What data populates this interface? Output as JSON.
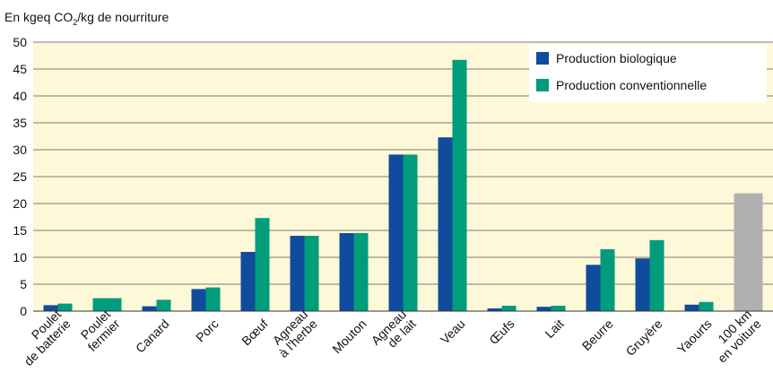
{
  "chart_data": {
    "type": "bar",
    "axis_label": [
      "En kgeq CO",
      "2",
      "/kg de nourriture"
    ],
    "categories": [
      [
        "Poulet",
        "de batterie"
      ],
      [
        "Poulet",
        "fermier"
      ],
      [
        "Canard"
      ],
      [
        "Porc"
      ],
      [
        "Bœuf"
      ],
      [
        "Agneau",
        "à l'herbe"
      ],
      [
        "Mouton"
      ],
      [
        "Agneau",
        "de lait"
      ],
      [
        "Veau"
      ],
      [
        "Œufs"
      ],
      [
        "Lait"
      ],
      [
        "Beurre"
      ],
      [
        "Gruyère"
      ],
      [
        "Yaourts"
      ],
      [
        "100 km",
        "en voiture"
      ]
    ],
    "series": [
      {
        "name": "Production biologique",
        "color": "#0f4c9c",
        "values": [
          1.1,
          null,
          0.9,
          4.1,
          11.0,
          14.0,
          14.5,
          29.1,
          32.3,
          0.5,
          0.8,
          8.6,
          9.8,
          1.2,
          null
        ]
      },
      {
        "name": "Production conventionnelle",
        "color": "#009c7c",
        "values": [
          1.4,
          2.4,
          2.1,
          4.4,
          17.3,
          14.0,
          14.5,
          29.1,
          46.7,
          1.0,
          1.0,
          11.5,
          13.2,
          1.7,
          null
        ]
      },
      {
        "color": "#b0b0b0",
        "values": [
          null,
          null,
          null,
          null,
          null,
          null,
          null,
          null,
          null,
          null,
          null,
          null,
          null,
          null,
          21.9
        ]
      }
    ],
    "ylim": [
      0,
      50
    ],
    "yticks": [
      0,
      5,
      10,
      15,
      20,
      25,
      30,
      35,
      40,
      45,
      50
    ],
    "grid": true,
    "legend": "top-right"
  }
}
